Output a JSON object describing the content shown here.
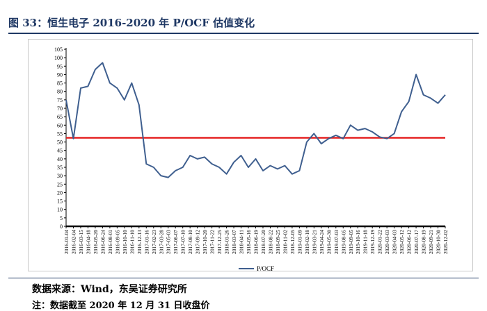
{
  "figure": {
    "title": "图 33：恒生电子 2016-2020 年 P/OCF 估值变化",
    "source": "数据来源：Wind，东吴证券研究所",
    "footnote": "注：数据截至 2020 年 12 月 31 日收盘价"
  },
  "chart_data": {
    "type": "line",
    "xlabel": "",
    "ylabel": "",
    "ylim": [
      0,
      105
    ],
    "yticks": [
      0,
      5,
      10,
      15,
      20,
      25,
      30,
      35,
      40,
      45,
      50,
      55,
      60,
      65,
      70,
      75,
      80,
      85,
      90,
      95,
      100,
      105
    ],
    "grid": false,
    "legend_position": "bottom",
    "categories": [
      "2016-01-04",
      "2016-02-04",
      "2016-03-15",
      "2016-04-18",
      "2016-05-20",
      "2016-06-24",
      "2016-08-01",
      "2016-09-05",
      "2016-10-10",
      "2016-11-10",
      "2016-12-13",
      "2017-01-16",
      "2017-02-23",
      "2017-03-28",
      "2017-05-03",
      "2017-06-07",
      "2017-07-10",
      "2017-08-10",
      "2017-09-12",
      "2017-10-20",
      "2017-11-22",
      "2017-12-25",
      "2018-01-26",
      "2018-03-07",
      "2018-04-11",
      "2018-05-16",
      "2018-06-19",
      "2018-07-20",
      "2018-08-22",
      "2018-09-25",
      "2018-11-02",
      "2018-12-05",
      "2019-01-09",
      "2019-02-18",
      "2019-03-21",
      "2019-04-24",
      "2019-05-30",
      "2019-07-03",
      "2019-08-05",
      "2019-09-05",
      "2019-10-16",
      "2019-11-18",
      "2019-12-19",
      "2020-01-22",
      "2020-03-03",
      "2020-04-03",
      "2020-05-12",
      "2020-06-12",
      "2020-07-17",
      "2020-08-19",
      "2020-09-21",
      "2020-10-30",
      "2020-12-02"
    ],
    "series": [
      {
        "name": "P/OCF",
        "color": "#3f5f8f",
        "values": [
          75,
          52,
          82,
          83,
          93,
          97,
          85,
          82,
          75,
          85,
          72,
          37,
          35,
          30,
          29,
          33,
          35,
          42,
          40,
          41,
          37,
          35,
          31,
          38,
          42,
          35,
          40,
          33,
          36,
          34,
          36,
          31,
          33,
          50,
          55,
          49,
          52,
          54,
          52,
          60,
          57,
          58,
          56,
          53,
          52,
          55,
          68,
          74,
          90,
          78,
          76,
          73,
          78
        ]
      }
    ],
    "reference_line": {
      "value": 52.5,
      "color": "#e52222"
    }
  }
}
